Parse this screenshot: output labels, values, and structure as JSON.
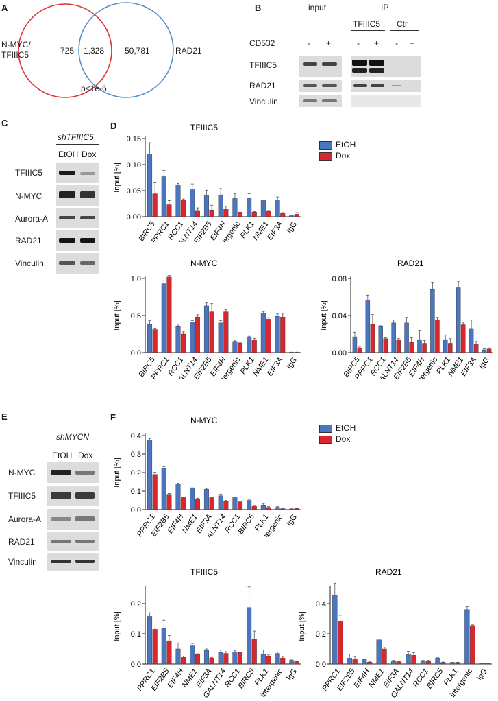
{
  "panels": {
    "A": "A",
    "B": "B",
    "C": "C",
    "D": "D",
    "E": "E",
    "F": "F"
  },
  "venn": {
    "left_label_1": "N-MYC/",
    "left_label_2": "TFIIIC5",
    "right_label": "RAD21",
    "left_only": "725",
    "overlap": "1,328",
    "right_only": "50,781",
    "pvalue": "p<1e-6",
    "colors": {
      "left": "#e0333a",
      "right": "#5b8ec9"
    }
  },
  "panel_b": {
    "input_label": "input",
    "ip_label": "IP",
    "ip_tfiiic5": "TFIIIC5",
    "ip_ctr": "Ctr",
    "treatment": "CD532",
    "signs": [
      "-",
      "+",
      "-",
      "+",
      "-",
      "+"
    ],
    "rows": [
      "TFIIIC5",
      "RAD21",
      "Vinculin"
    ]
  },
  "panel_c": {
    "header": "shTFIIIC5",
    "lanes": [
      "EtOH",
      "Dox"
    ],
    "rows": [
      "TFIIIC5",
      "N-MYC",
      "Aurora-A",
      "RAD21",
      "Vinculin"
    ]
  },
  "panel_e": {
    "header": "shMYCN",
    "lanes": [
      "EtOH",
      "Dox"
    ],
    "rows": [
      "N-MYC",
      "TFIIIC5",
      "Aurora-A",
      "RAD21",
      "Vinculin"
    ]
  },
  "legend_d": {
    "etoh": "EtOH",
    "dox": "Dox"
  },
  "legend_f": {
    "etoh": "EtOH",
    "dox": "Dox"
  },
  "chart_data": [
    {
      "id": "D1",
      "type": "bar",
      "title": "TFIIIC5",
      "ylabel": "Input [%]",
      "categories": [
        "BIRC5",
        "PPRC1",
        "RCC1",
        "GALNT14",
        "EIF2B5",
        "EIF4H",
        "intergenic",
        "PLK1",
        "NME1",
        "EIF3A",
        "IgG"
      ],
      "series": [
        {
          "name": "EtOH",
          "values": [
            0.12,
            0.077,
            0.061,
            0.052,
            0.041,
            0.042,
            0.035,
            0.036,
            0.031,
            0.032,
            0.002
          ],
          "errors": [
            0.022,
            0.012,
            0.003,
            0.011,
            0.01,
            0.012,
            0.009,
            0.008,
            0.001,
            0.006,
            0.001
          ]
        },
        {
          "name": "Dox",
          "values": [
            0.044,
            0.023,
            0.032,
            0.012,
            0.013,
            0.015,
            0.009,
            0.009,
            0.011,
            0.007,
            0.005
          ],
          "errors": [
            0.021,
            0.008,
            0.002,
            0.005,
            0.009,
            0.005,
            0.002,
            0.001,
            0.001,
            0.001,
            0.003
          ]
        }
      ],
      "ylim": [
        0,
        0.15
      ],
      "yticks": [
        0.0,
        0.05,
        0.1,
        0.15
      ],
      "ytick_labels": [
        "0.00",
        "0.05",
        "0.10",
        "0.15"
      ]
    },
    {
      "id": "D2",
      "type": "bar",
      "title": "N-MYC",
      "ylabel": "Input [%]",
      "categories": [
        "BIRC5",
        "PPRC1",
        "RCC1",
        "GALNT14",
        "EIF2B5",
        "EIF4H",
        "intergenic",
        "PLK1",
        "NME1",
        "EIF3A",
        "IgG"
      ],
      "series": [
        {
          "name": "EtOH",
          "values": [
            0.38,
            0.93,
            0.35,
            0.41,
            0.63,
            0.4,
            0.15,
            0.2,
            0.53,
            0.49,
            0.005
          ],
          "errors": [
            0.05,
            0.04,
            0.02,
            0.02,
            0.04,
            0.03,
            0.01,
            0.02,
            0.02,
            0.03,
            0.002
          ]
        },
        {
          "name": "Dox",
          "values": [
            0.31,
            1.02,
            0.25,
            0.48,
            0.55,
            0.55,
            0.13,
            0.17,
            0.45,
            0.48,
            0.005
          ],
          "errors": [
            0.02,
            0.02,
            0.03,
            0.03,
            0.11,
            0.03,
            0.01,
            0.02,
            0.02,
            0.04,
            0.002
          ]
        }
      ],
      "ylim": [
        0,
        1.0
      ],
      "yticks": [
        0.0,
        0.5,
        1.0
      ],
      "ytick_labels": [
        "0.0",
        "0.5",
        "1.0"
      ]
    },
    {
      "id": "D3",
      "type": "bar",
      "title": "RAD21",
      "ylabel": "Input [%]",
      "categories": [
        "BIRC5",
        "PPRC1",
        "RCC1",
        "GALNT14",
        "EIF2B5",
        "EIF4H",
        "intergenic",
        "PLK1",
        "NME1",
        "EIF3A",
        "IgG"
      ],
      "series": [
        {
          "name": "EtOH",
          "values": [
            0.017,
            0.056,
            0.028,
            0.032,
            0.032,
            0.014,
            0.068,
            0.014,
            0.07,
            0.026,
            0.003
          ],
          "errors": [
            0.005,
            0.006,
            0.001,
            0.003,
            0.006,
            0.01,
            0.008,
            0.005,
            0.007,
            0.009,
            0.001
          ]
        },
        {
          "name": "Dox",
          "values": [
            0.005,
            0.031,
            0.015,
            0.014,
            0.011,
            0.01,
            0.035,
            0.01,
            0.03,
            0.009,
            0.004
          ],
          "errors": [
            0.001,
            0.01,
            0.001,
            0.001,
            0.005,
            0.003,
            0.003,
            0.005,
            0.002,
            0.003,
            0.001
          ]
        }
      ],
      "ylim": [
        0,
        0.08
      ],
      "yticks": [
        0.0,
        0.04,
        0.08
      ],
      "ytick_labels": [
        "0.00",
        "0.04",
        "0.08"
      ]
    },
    {
      "id": "F1",
      "type": "bar",
      "title": "N-MYC",
      "ylabel": "Input [%]",
      "categories": [
        "PPRC1",
        "EIF2B5",
        "EIF4H",
        "NME1",
        "EIF3A",
        "GALNT14",
        "RCC1",
        "BIRC5",
        "PLK1",
        "intergenic",
        "IgG"
      ],
      "series": [
        {
          "name": "EtOH",
          "values": [
            0.375,
            0.222,
            0.138,
            0.115,
            0.11,
            0.075,
            0.065,
            0.05,
            0.025,
            0.012,
            0.004
          ],
          "errors": [
            0.01,
            0.01,
            0.005,
            0.003,
            0.005,
            0.009,
            0.003,
            0.005,
            0.006,
            0.004,
            0.001
          ]
        },
        {
          "name": "Dox",
          "values": [
            0.19,
            0.083,
            0.065,
            0.058,
            0.065,
            0.045,
            0.042,
            0.02,
            0.012,
            0.005,
            0.006
          ],
          "errors": [
            0.012,
            0.004,
            0.002,
            0.004,
            0.003,
            0.005,
            0.003,
            0.003,
            0.004,
            0.001,
            0.001
          ]
        }
      ],
      "ylim": [
        0,
        0.4
      ],
      "yticks": [
        0.0,
        0.1,
        0.2,
        0.3,
        0.4
      ],
      "ytick_labels": [
        "0.0",
        "0.1",
        "0.2",
        "0.3",
        "0.4"
      ]
    },
    {
      "id": "F2",
      "type": "bar",
      "title": "TFIIIC5",
      "ylabel": "Input [%]",
      "categories": [
        "PPRC1",
        "EIF2B5",
        "EIF4H",
        "NME1",
        "EIF3A",
        "GALNT14",
        "RCC1",
        "BIRC5",
        "PLK1",
        "intergenic",
        "IgG"
      ],
      "series": [
        {
          "name": "EtOH",
          "values": [
            0.158,
            0.118,
            0.05,
            0.06,
            0.045,
            0.038,
            0.04,
            0.187,
            0.032,
            0.035,
            0.012
          ],
          "errors": [
            0.012,
            0.027,
            0.02,
            0.008,
            0.005,
            0.008,
            0.005,
            0.068,
            0.015,
            0.005,
            0.002
          ]
        },
        {
          "name": "Dox",
          "values": [
            0.115,
            0.077,
            0.022,
            0.032,
            0.02,
            0.035,
            0.038,
            0.082,
            0.025,
            0.02,
            0.008
          ],
          "errors": [
            0.004,
            0.017,
            0.004,
            0.002,
            0.002,
            0.006,
            0.002,
            0.027,
            0.005,
            0.003,
            0.001
          ]
        }
      ],
      "ylim": [
        0,
        0.25
      ],
      "yticks": [
        0.0,
        0.1,
        0.2
      ],
      "ytick_labels": [
        "0.0",
        "0.1",
        "0.2"
      ]
    },
    {
      "id": "F3",
      "type": "bar",
      "title": "RAD21",
      "ylabel": "Input [%]",
      "categories": [
        "PPRC1",
        "EIF2B5",
        "EIF4H",
        "NME1",
        "EIF3A",
        "GALNT14",
        "RCC1",
        "BIRC5",
        "PLK1",
        "intergenic",
        "IgG"
      ],
      "series": [
        {
          "name": "EtOH",
          "values": [
            0.455,
            0.04,
            0.03,
            0.16,
            0.02,
            0.062,
            0.02,
            0.035,
            0.01,
            0.36,
            0.003
          ],
          "errors": [
            0.08,
            0.025,
            0.008,
            0.006,
            0.005,
            0.022,
            0.004,
            0.007,
            0.002,
            0.02,
            0.001
          ]
        },
        {
          "name": "Dox",
          "values": [
            0.283,
            0.03,
            0.012,
            0.1,
            0.015,
            0.058,
            0.022,
            0.01,
            0.01,
            0.255,
            0.005
          ],
          "errors": [
            0.04,
            0.02,
            0.003,
            0.01,
            0.003,
            0.018,
            0.003,
            0.003,
            0.002,
            0.005,
            0.001
          ]
        }
      ],
      "ylim": [
        0,
        0.5
      ],
      "yticks": [
        0.0,
        0.2,
        0.4
      ],
      "ytick_labels": [
        "0.0",
        "0.2",
        "0.4"
      ]
    }
  ]
}
